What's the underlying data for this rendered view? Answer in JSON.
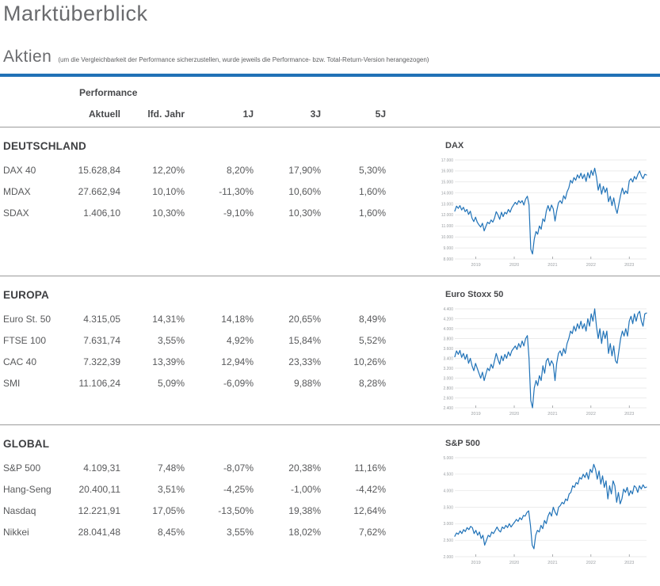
{
  "page": {
    "title": "Marktüberblick",
    "section_heading": "Aktien",
    "section_note": "(um die Vergleichbarkeit der Performance sicherzustellen, wurde jeweils die Performance- bzw. Total-Return-Version herangezogen)"
  },
  "colors": {
    "accent_blue": "#2071b6",
    "chart_line": "#2173b8",
    "grid_line": "#e4e4e4",
    "divider": "#9b9b9b",
    "text_gray": "#58595b"
  },
  "table": {
    "group_header": "Performance",
    "columns": [
      "Aktuell",
      "lfd. Jahr",
      "1J",
      "3J",
      "5J"
    ],
    "sections": [
      {
        "name": "DEUTSCHLAND",
        "rows": [
          {
            "name": "DAX 40",
            "values": [
              "15.628,84",
              "12,20%",
              "8,20%",
              "17,90%",
              "5,30%"
            ]
          },
          {
            "name": "MDAX",
            "values": [
              "27.662,94",
              "10,10%",
              "-11,30%",
              "10,60%",
              "1,60%"
            ]
          },
          {
            "name": "SDAX",
            "values": [
              "1.406,10",
              "10,30%",
              "-9,10%",
              "10,30%",
              "1,60%"
            ]
          }
        ]
      },
      {
        "name": "EUROPA",
        "rows": [
          {
            "name": "Euro St. 50",
            "values": [
              "4.315,05",
              "14,31%",
              "14,18%",
              "20,65%",
              "8,49%"
            ]
          },
          {
            "name": "FTSE 100",
            "values": [
              "7.631,74",
              "3,55%",
              "4,92%",
              "15,84%",
              "5,52%"
            ]
          },
          {
            "name": "CAC 40",
            "values": [
              "7.322,39",
              "13,39%",
              "12,94%",
              "23,33%",
              "10,26%"
            ]
          },
          {
            "name": "SMI",
            "values": [
              "11.106,24",
              "5,09%",
              "-6,09%",
              "9,88%",
              "8,28%"
            ]
          }
        ]
      },
      {
        "name": "GLOBAL",
        "rows": [
          {
            "name": "S&P 500",
            "values": [
              "4.109,31",
              "7,48%",
              "-8,07%",
              "20,38%",
              "11,16%"
            ]
          },
          {
            "name": "Hang-Seng",
            "values": [
              "20.400,11",
              "3,51%",
              "-4,25%",
              "-1,00%",
              "-4,42%"
            ]
          },
          {
            "name": "Nasdaq",
            "values": [
              "12.221,91",
              "17,05%",
              "-13,50%",
              "19,38%",
              "12,64%"
            ]
          },
          {
            "name": "Nikkei",
            "values": [
              "28.041,48",
              "8,45%",
              "3,55%",
              "18,02%",
              "7,62%"
            ]
          }
        ]
      }
    ]
  },
  "chart_data": [
    {
      "type": "line",
      "title": "DAX",
      "line_color": "#2173b8",
      "ylim": [
        8000,
        17000
      ],
      "y_ticks": [
        {
          "v": 17000,
          "label": "17.000"
        },
        {
          "v": 16000,
          "label": "16.000"
        },
        {
          "v": 15000,
          "label": "15.000"
        },
        {
          "v": 14000,
          "label": "14.000"
        },
        {
          "v": 13000,
          "label": "13.000"
        },
        {
          "v": 12000,
          "label": "12.000"
        },
        {
          "v": 11000,
          "label": "11.000"
        },
        {
          "v": 10000,
          "label": "10.000"
        },
        {
          "v": 9000,
          "label": "9.000"
        },
        {
          "v": 8000,
          "label": "8.000"
        }
      ],
      "x_range": [
        2018.45,
        2023.45
      ],
      "x_ticks": [
        {
          "v": 2019,
          "label": "2019"
        },
        {
          "v": 2020,
          "label": "2020"
        },
        {
          "v": 2021,
          "label": "2021"
        },
        {
          "v": 2022,
          "label": "2022"
        },
        {
          "v": 2023,
          "label": "2023"
        }
      ],
      "values": [
        12350,
        12800,
        12600,
        12850,
        12450,
        12700,
        12300,
        12500,
        12050,
        12350,
        11700,
        11400,
        11800,
        11350,
        11100,
        10900,
        11250,
        10550,
        10950,
        11350,
        11200,
        11550,
        11350,
        11700,
        12300,
        12000,
        11600,
        12250,
        11850,
        12250,
        12100,
        12500,
        12250,
        12650,
        12900,
        13150,
        12950,
        13300,
        13100,
        13300,
        12900,
        13450,
        13700,
        12900,
        8900,
        8450,
        9800,
        10500,
        10250,
        11000,
        10700,
        11650,
        11400,
        12350,
        12850,
        12350,
        12900,
        12550,
        11450,
        12350,
        13100,
        13300,
        13050,
        13750,
        13450,
        14100,
        14450,
        15150,
        14900,
        15400,
        15150,
        15650,
        15350,
        15800,
        15300,
        15700,
        15050,
        15850,
        15350,
        16050,
        15600,
        16250,
        15450,
        14250,
        14850,
        13900,
        14600,
        14050,
        14450,
        13200,
        13700,
        12850,
        13550,
        12650,
        12150,
        13000,
        13800,
        14450,
        13900,
        14200,
        13950,
        15100,
        15300,
        15000,
        15500,
        15250,
        15700,
        16000,
        15550,
        15300,
        15700,
        15630
      ]
    },
    {
      "type": "line",
      "title": "Euro Stoxx 50",
      "line_color": "#2173b8",
      "ylim": [
        2400,
        4400
      ],
      "y_ticks": [
        {
          "v": 4400,
          "label": "4.400"
        },
        {
          "v": 4200,
          "label": "4.200"
        },
        {
          "v": 4000,
          "label": "4.000"
        },
        {
          "v": 3800,
          "label": "3.800"
        },
        {
          "v": 3600,
          "label": "3.600"
        },
        {
          "v": 3400,
          "label": "3.400"
        },
        {
          "v": 3200,
          "label": "3.200"
        },
        {
          "v": 3000,
          "label": "3.000"
        },
        {
          "v": 2800,
          "label": "2.800"
        },
        {
          "v": 2600,
          "label": "2.600"
        },
        {
          "v": 2400,
          "label": "2.400"
        }
      ],
      "x_range": [
        2018.45,
        2023.45
      ],
      "x_ticks": [
        {
          "v": 2019,
          "label": "2019"
        },
        {
          "v": 2020,
          "label": "2020"
        },
        {
          "v": 2021,
          "label": "2021"
        },
        {
          "v": 2022,
          "label": "2022"
        },
        {
          "v": 2023,
          "label": "2023"
        }
      ],
      "values": [
        3430,
        3550,
        3480,
        3560,
        3420,
        3500,
        3380,
        3480,
        3300,
        3400,
        3250,
        3150,
        3300,
        3200,
        3100,
        3000,
        3120,
        2950,
        3080,
        3200,
        3150,
        3280,
        3200,
        3350,
        3500,
        3380,
        3280,
        3450,
        3350,
        3480,
        3400,
        3530,
        3450,
        3550,
        3600,
        3650,
        3580,
        3700,
        3620,
        3750,
        3650,
        3800,
        3860,
        3400,
        2550,
        2400,
        2800,
        2950,
        2850,
        3050,
        2950,
        3250,
        3100,
        3350,
        3400,
        3250,
        3350,
        3280,
        2950,
        3300,
        3500,
        3550,
        3450,
        3600,
        3500,
        3700,
        3800,
        3950,
        3900,
        4050,
        3950,
        4100,
        4000,
        4150,
        4000,
        4100,
        3950,
        4200,
        4050,
        4300,
        4150,
        4400,
        4050,
        3800,
        4000,
        3700,
        3950,
        3800,
        3950,
        3500,
        3700,
        3450,
        3650,
        3350,
        3300,
        3550,
        3800,
        3950,
        3850,
        4000,
        3850,
        4150,
        4250,
        4100,
        4300,
        4150,
        4300,
        4350,
        4150,
        4050,
        4300,
        4315
      ]
    },
    {
      "type": "line",
      "title": "S&P 500",
      "line_color": "#2173b8",
      "ylim": [
        2000,
        5000
      ],
      "y_ticks": [
        {
          "v": 5000,
          "label": "5.000"
        },
        {
          "v": 4500,
          "label": "4.500"
        },
        {
          "v": 4000,
          "label": "4.000"
        },
        {
          "v": 3500,
          "label": "3.500"
        },
        {
          "v": 3000,
          "label": "3.000"
        },
        {
          "v": 2500,
          "label": "2.500"
        },
        {
          "v": 2000,
          "label": "2.000"
        }
      ],
      "x_range": [
        2018.45,
        2023.45
      ],
      "x_ticks": [
        {
          "v": 2019,
          "label": "2019"
        },
        {
          "v": 2020,
          "label": "2020"
        },
        {
          "v": 2021,
          "label": "2021"
        },
        {
          "v": 2022,
          "label": "2022"
        },
        {
          "v": 2023,
          "label": "2023"
        }
      ],
      "values": [
        2620,
        2720,
        2680,
        2780,
        2700,
        2820,
        2760,
        2880,
        2820,
        2920,
        2880,
        2700,
        2800,
        2650,
        2750,
        2550,
        2650,
        2350,
        2500,
        2650,
        2600,
        2750,
        2700,
        2800,
        2900,
        2800,
        2750,
        2900,
        2850,
        2950,
        2880,
        3000,
        2900,
        2980,
        3050,
        3130,
        3070,
        3180,
        3120,
        3250,
        3230,
        3340,
        3390,
        2950,
        2350,
        2240,
        2650,
        2800,
        2750,
        2950,
        2850,
        3100,
        3000,
        3230,
        3350,
        3230,
        3500,
        3350,
        3250,
        3500,
        3550,
        3650,
        3600,
        3750,
        3700,
        3900,
        3950,
        4150,
        4100,
        4250,
        4200,
        4400,
        4350,
        4500,
        4400,
        4550,
        4350,
        4650,
        4550,
        4800,
        4650,
        4350,
        4600,
        4200,
        4450,
        4100,
        4300,
        3750,
        4150,
        3900,
        4300,
        4150,
        3650,
        3950,
        3600,
        3750,
        4050,
        3950,
        4100,
        3850,
        4000,
        3900,
        4150,
        4100,
        3950,
        4150,
        4050,
        4180,
        4090,
        4109
      ]
    }
  ]
}
